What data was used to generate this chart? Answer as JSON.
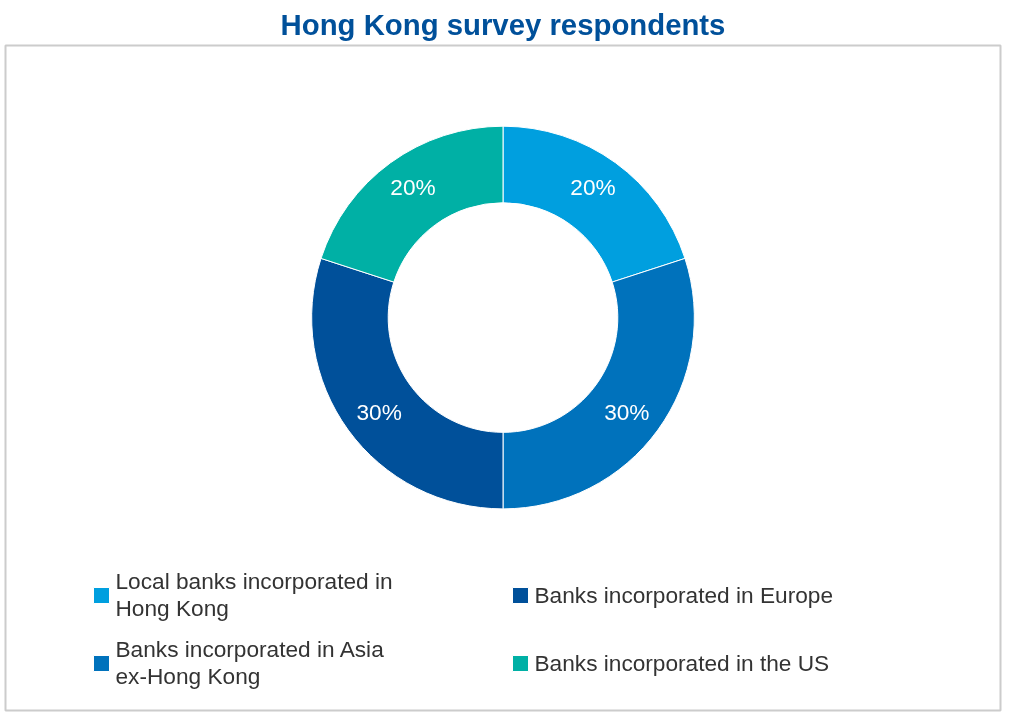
{
  "chart_data": {
    "type": "donut",
    "title": "Hong Kong survey respondents",
    "categories": [
      "Local banks incorporated in Hong Kong",
      "Banks incorporated in Asia ex-Hong Kong",
      "Banks incorporated in Europe",
      "Banks incorporated in the US"
    ],
    "values": [
      20,
      30,
      30,
      20
    ],
    "colors": [
      "#009fdf",
      "#0072bc",
      "#00509a",
      "#00b0a5"
    ],
    "value_labels": [
      "20%",
      "30%",
      "30%",
      "20%"
    ],
    "legend": "bottom"
  }
}
